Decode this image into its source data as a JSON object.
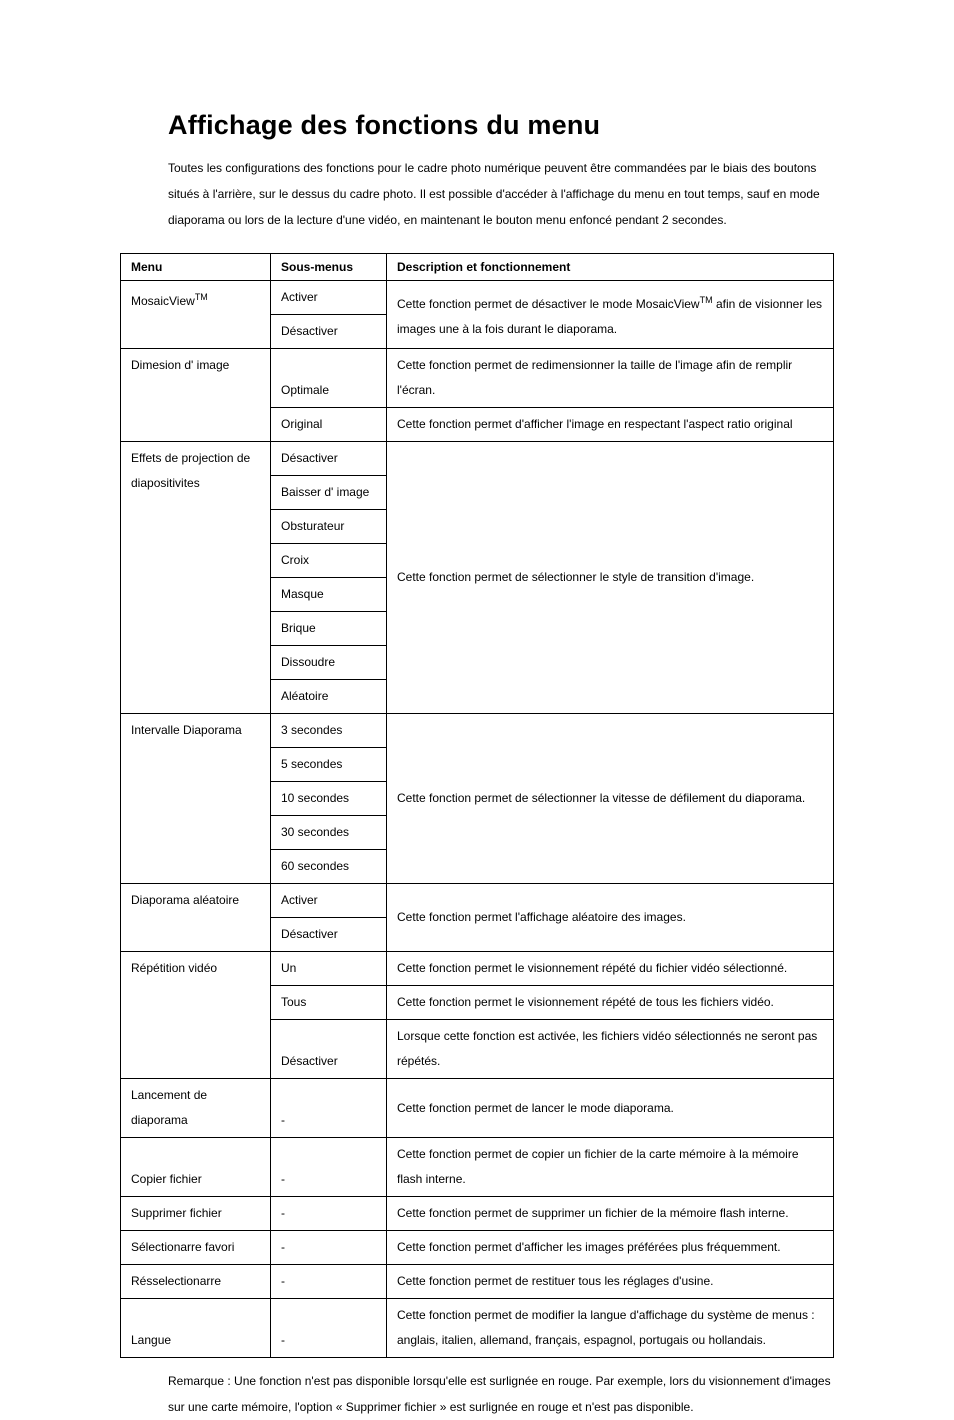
{
  "title": "Affichage des fonctions du menu",
  "intro": "Toutes les configurations des fonctions pour le cadre photo numérique peuvent être commandées par le biais des boutons situés à l'arrière, sur le dessus du cadre photo. Il est possible d'accéder à l'affichage du menu en tout temps, sauf en mode diaporama ou lors de la lecture d'une vidéo, en maintenant le bouton menu enfoncé pendant 2 secondes.",
  "headers": {
    "menu": "Menu",
    "sub": "Sous-menus",
    "desc": "Description et fonctionnement"
  },
  "mosaic": {
    "menu_html": "MosaicView<sup>TM</sup>",
    "sub_on": "Activer",
    "sub_off": "Désactiver",
    "desc_html": "Cette fonction permet de désactiver le mode MosaicView<sup>TM</sup> afin de visionner les images une à la fois durant le diaporama."
  },
  "dim": {
    "menu": "Dimesion d' image",
    "sub_opt": "Optimale",
    "sub_orig": "Original",
    "desc_opt": "Cette fonction permet de redimensionner la taille de l'image afin de remplir l'écran.",
    "desc_orig": "Cette fonction permet d'afficher l'image en respectant l'aspect ratio original"
  },
  "effects": {
    "menu": "Effets de projection de diapositivites",
    "sub": [
      "Désactiver",
      "Baisser d' image",
      "Obsturateur",
      "Croix",
      "Masque",
      "Brique",
      "Dissoudre",
      "Aléatoire"
    ],
    "desc": "Cette fonction permet de sélectionner le style de transition d'image."
  },
  "interval": {
    "menu": "Intervalle Diaporama",
    "sub": [
      "3 secondes",
      "5 secondes",
      "10 secondes",
      "30 secondes",
      "60 secondes"
    ],
    "desc": "Cette fonction permet de sélectionner la vitesse de défilement du diaporama."
  },
  "random": {
    "menu": "Diaporama aléatoire",
    "sub_on": "Activer",
    "sub_off": "Désactiver",
    "desc": "Cette fonction permet l'affichage aléatoire des images."
  },
  "repeat": {
    "menu": "Répétition vidéo",
    "sub_one": "Un",
    "desc_one": "Cette fonction permet le visionnement répété du fichier vidéo sélectionné.",
    "sub_all": "Tous",
    "desc_all": "Cette fonction permet le visionnement répété de tous les fichiers vidéo.",
    "sub_off": "Désactiver",
    "desc_off": "Lorsque cette fonction est activée, les fichiers vidéo sélectionnés ne seront pas répétés."
  },
  "launch": {
    "menu": "Lancement de diaporama",
    "sub": "-",
    "desc": "Cette fonction permet de lancer le mode diaporama."
  },
  "copy": {
    "menu": "Copier fichier",
    "sub": "-",
    "desc": "Cette fonction permet de copier un fichier de la carte mémoire à la mémoire flash interne."
  },
  "del": {
    "menu": "Supprimer fichier",
    "sub": "-",
    "desc": "Cette fonction permet de supprimer un fichier de la mémoire flash interne."
  },
  "fav": {
    "menu": "Sélectionarre favori",
    "sub": "-",
    "desc": "Cette fonction permet d'afficher les images préférées plus fréquemment."
  },
  "reset": {
    "menu": "Résselectionarre",
    "sub": "-",
    "desc": "Cette fonction permet de restituer tous les réglages d'usine."
  },
  "lang": {
    "menu": "Langue",
    "sub": "-",
    "desc": "Cette fonction permet de modifier la langue d'affichage du système de menus : anglais, italien, allemand, français, espagnol, portugais ou hollandais."
  },
  "note": "Remarque : Une fonction n'est pas disponible lorsqu'elle est surlignée en rouge. Par exemple, lors du visionnement d'images sur une carte mémoire, l'option « Supprimer fichier » est surlignée en rouge et n'est pas disponible."
}
